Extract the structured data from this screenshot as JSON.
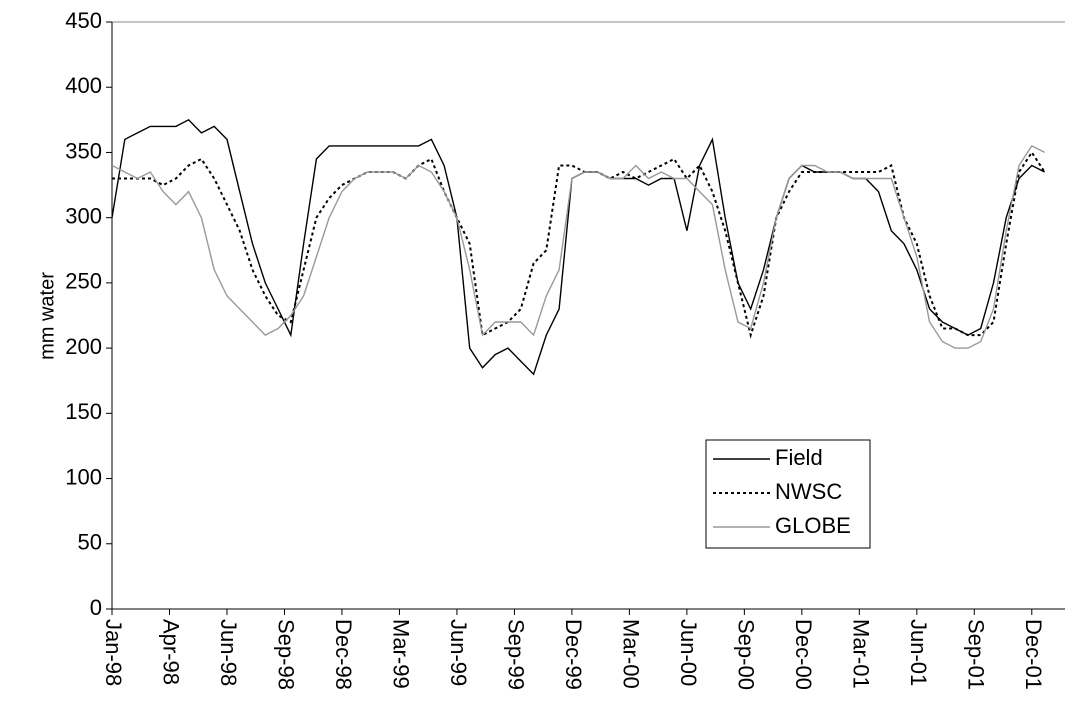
{
  "chart_data": {
    "type": "line",
    "y_label": "mm water",
    "x": [
      0,
      20,
      40,
      60,
      80,
      100,
      120,
      140,
      160,
      180,
      200,
      220,
      240,
      260,
      280,
      300,
      320,
      340,
      360,
      380,
      400,
      420,
      440,
      460,
      480,
      500,
      520,
      540,
      560,
      580,
      600,
      620,
      640,
      660,
      680,
      700,
      720,
      740,
      760,
      780,
      800,
      820,
      840,
      860,
      880,
      900,
      920,
      940,
      960,
      980,
      1000,
      1020,
      1040,
      1060,
      1080,
      1100,
      1120,
      1140,
      1160,
      1180,
      1200,
      1220,
      1240,
      1260,
      1280,
      1300,
      1320,
      1340,
      1360,
      1380,
      1400,
      1420,
      1440,
      1460
    ],
    "xlim": [
      0,
      1492
    ],
    "xticks": [
      {
        "value": 0,
        "label": "Jan-98"
      },
      {
        "value": 90,
        "label": "Apr-98"
      },
      {
        "value": 180,
        "label": "Jun-98"
      },
      {
        "value": 270,
        "label": "Sep-98"
      },
      {
        "value": 360,
        "label": "Dec-98"
      },
      {
        "value": 450,
        "label": "Mar-99"
      },
      {
        "value": 540,
        "label": "Jun-99"
      },
      {
        "value": 630,
        "label": "Sep-99"
      },
      {
        "value": 720,
        "label": "Dec-99"
      },
      {
        "value": 810,
        "label": "Mar-00"
      },
      {
        "value": 900,
        "label": "Jun-00"
      },
      {
        "value": 990,
        "label": "Sep-00"
      },
      {
        "value": 1080,
        "label": "Dec-00"
      },
      {
        "value": 1170,
        "label": "Mar-01"
      },
      {
        "value": 1260,
        "label": "Jun-01"
      },
      {
        "value": 1350,
        "label": "Sep-01"
      },
      {
        "value": 1440,
        "label": "Dec-01"
      }
    ],
    "ylim": [
      0,
      450
    ],
    "yticks": [
      0,
      50,
      100,
      150,
      200,
      250,
      300,
      350,
      400,
      450
    ],
    "grid": false,
    "legend": "center right",
    "series": [
      {
        "name": "Field",
        "color": "#000000",
        "dash": "solid",
        "values": [
          300,
          360,
          365,
          370,
          370,
          370,
          375,
          365,
          370,
          360,
          320,
          280,
          250,
          230,
          210,
          280,
          345,
          355,
          355,
          355,
          355,
          355,
          355,
          355,
          355,
          360,
          340,
          300,
          200,
          185,
          195,
          200,
          190,
          180,
          210,
          230,
          330,
          335,
          335,
          330,
          330,
          330,
          325,
          330,
          330,
          290,
          340,
          360,
          300,
          250,
          230,
          260,
          300,
          330,
          340,
          335,
          335,
          335,
          330,
          330,
          320,
          290,
          280,
          260,
          230,
          220,
          215,
          210,
          215,
          250,
          300,
          330,
          340,
          335
        ]
      },
      {
        "name": "NWSC",
        "color": "#000000",
        "dash": "dotted",
        "values": [
          330,
          330,
          330,
          330,
          325,
          330,
          340,
          345,
          330,
          310,
          290,
          260,
          240,
          225,
          220,
          260,
          300,
          315,
          325,
          330,
          335,
          335,
          335,
          330,
          340,
          345,
          320,
          300,
          280,
          210,
          215,
          220,
          230,
          265,
          275,
          340,
          340,
          335,
          335,
          330,
          335,
          330,
          335,
          340,
          345,
          330,
          340,
          320,
          290,
          250,
          210,
          240,
          300,
          320,
          335,
          335,
          335,
          335,
          335,
          335,
          335,
          340,
          300,
          280,
          240,
          215,
          215,
          210,
          210,
          220,
          280,
          335,
          350,
          335
        ]
      },
      {
        "name": "GLOBE",
        "color": "#999999",
        "dash": "solid",
        "values": [
          340,
          335,
          330,
          335,
          320,
          310,
          320,
          300,
          260,
          240,
          230,
          220,
          210,
          215,
          225,
          240,
          270,
          300,
          320,
          330,
          335,
          335,
          335,
          330,
          340,
          335,
          320,
          300,
          260,
          210,
          220,
          220,
          220,
          210,
          240,
          260,
          330,
          335,
          335,
          330,
          330,
          340,
          330,
          335,
          330,
          330,
          320,
          310,
          260,
          220,
          215,
          250,
          300,
          330,
          340,
          340,
          335,
          335,
          330,
          330,
          330,
          330,
          300,
          270,
          220,
          205,
          200,
          200,
          205,
          230,
          290,
          340,
          355,
          350
        ]
      }
    ]
  }
}
